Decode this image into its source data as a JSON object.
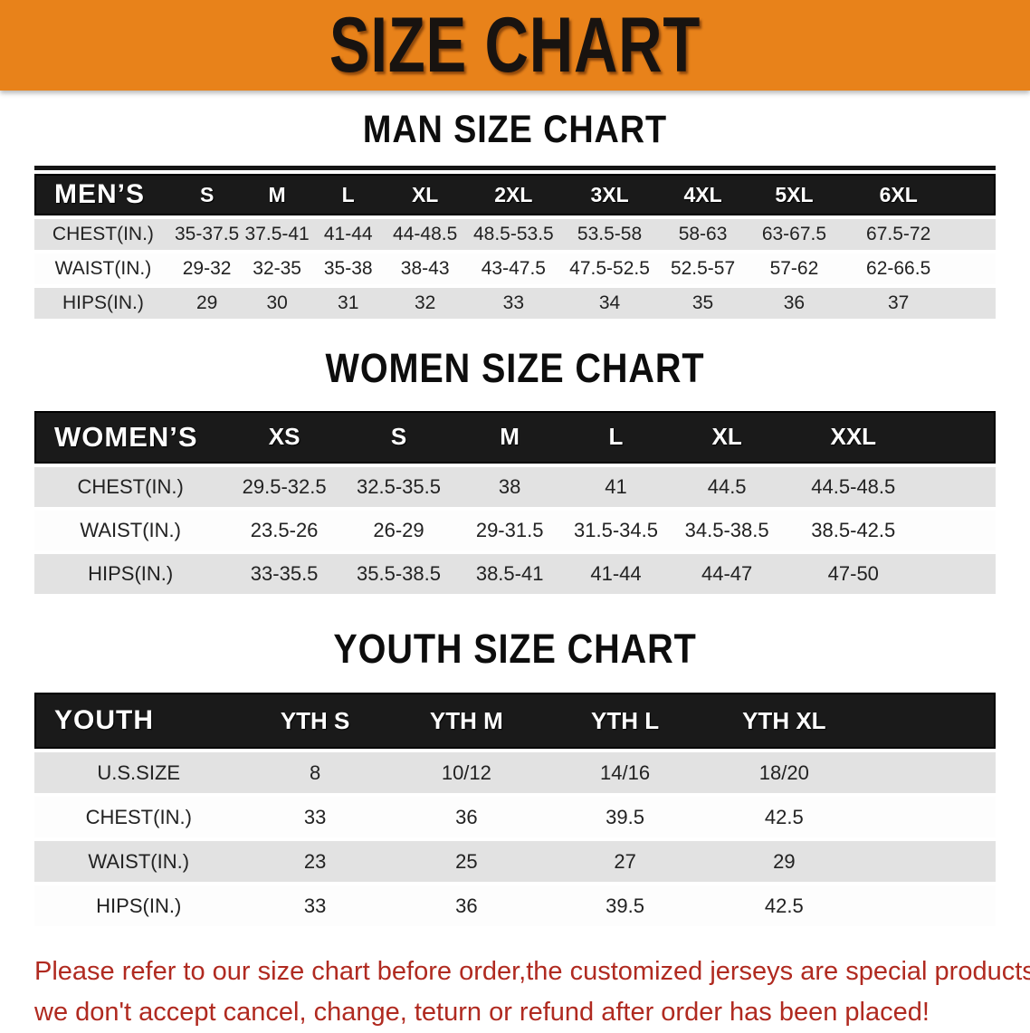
{
  "banner": {
    "title": "SIZE CHART"
  },
  "colors": {
    "banner_bg": "#E8821A",
    "header_bar": "#1A1A1A",
    "row_gray": "#E2E2E2",
    "note_red": "#B02A20"
  },
  "man": {
    "heading": "MAN SIZE CHART",
    "columns": [
      "MEN’S",
      "S",
      "M",
      "L",
      "XL",
      "2XL",
      "3XL",
      "4XL",
      "5XL",
      "6XL"
    ],
    "rows": [
      [
        "CHEST(IN.)",
        "35-37.5",
        "37.5-41",
        "41-44",
        "44-48.5",
        "48.5-53.5",
        "53.5-58",
        "58-63",
        "63-67.5",
        "67.5-72"
      ],
      [
        "WAIST(IN.)",
        "29-32",
        "32-35",
        "35-38",
        "38-43",
        "43-47.5",
        "47.5-52.5",
        "52.5-57",
        "57-62",
        "62-66.5"
      ],
      [
        "HIPS(IN.)",
        "29",
        "30",
        "31",
        "32",
        "33",
        "34",
        "35",
        "36",
        "37"
      ]
    ]
  },
  "women": {
    "heading": "WOMEN SIZE CHART",
    "columns": [
      "WOMEN’S",
      "XS",
      "S",
      "M",
      "L",
      "XL",
      "XXL"
    ],
    "rows": [
      [
        "CHEST(IN.)",
        "29.5-32.5",
        "32.5-35.5",
        "38",
        "41",
        "44.5",
        "44.5-48.5"
      ],
      [
        "WAIST(IN.)",
        "23.5-26",
        "26-29",
        "29-31.5",
        "31.5-34.5",
        "34.5-38.5",
        "38.5-42.5"
      ],
      [
        "HIPS(IN.)",
        "33-35.5",
        "35.5-38.5",
        "38.5-41",
        "41-44",
        "44-47",
        "47-50"
      ]
    ]
  },
  "youth": {
    "heading": "YOUTH SIZE CHART",
    "columns": [
      "YOUTH",
      "YTH S",
      "YTH M",
      "YTH L",
      "YTH XL"
    ],
    "rows": [
      [
        "U.S.SIZE",
        "8",
        "10/12",
        "14/16",
        "18/20"
      ],
      [
        "CHEST(IN.)",
        "33",
        "36",
        "39.5",
        "42.5"
      ],
      [
        "WAIST(IN.)",
        "23",
        "25",
        "27",
        "29"
      ],
      [
        "HIPS(IN.)",
        "33",
        "36",
        "39.5",
        "42.5"
      ]
    ]
  },
  "note": {
    "lines": [
      "Please refer to our size chart before order,the customized jerseys are special products,",
      "we don't accept cancel, change, teturn or refund after order has been placed!"
    ]
  }
}
